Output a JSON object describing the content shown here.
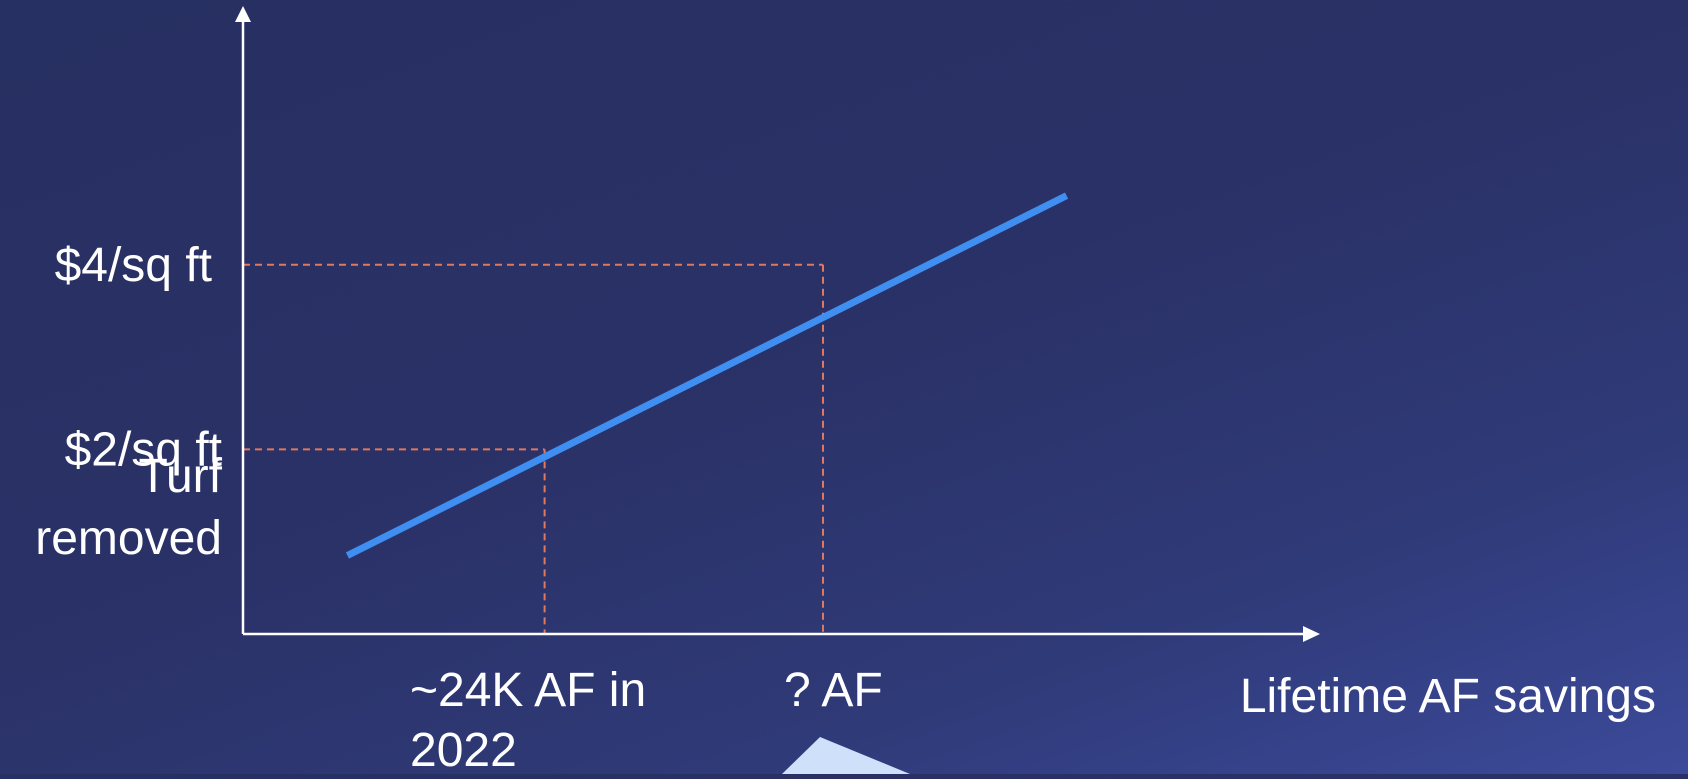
{
  "chart_data": {
    "type": "line",
    "xlabel": "Lifetime AF savings",
    "ylabel": "Turf removed",
    "y_tick_labels": [
      "$4/sq ft",
      "$2/sq ft"
    ],
    "x_annotations": [
      "~24K AF in 2022",
      "? AF"
    ],
    "series": [
      {
        "x": [
          0.9,
          7.1
        ],
        "y": [
          0.85,
          4.75
        ]
      }
    ],
    "reference_points": [
      {
        "x": 2.6,
        "y": 2
      },
      {
        "x": 5.0,
        "y": 4
      }
    ],
    "xlim": [
      0,
      9
    ],
    "ylim": [
      0,
      5.3
    ],
    "line_color": "#3f8ef2",
    "guide_color": "#e2775d",
    "axis_color": "#ffffff"
  }
}
